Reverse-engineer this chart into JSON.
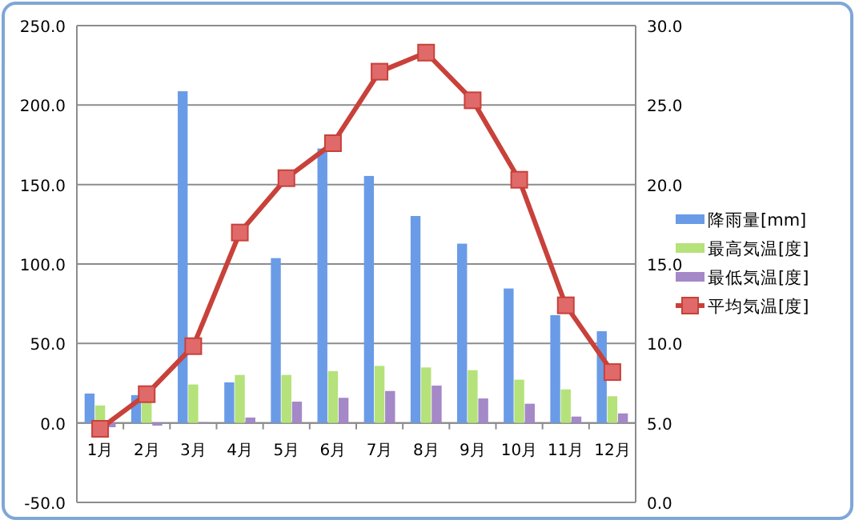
{
  "chart_data": {
    "type": "bar",
    "categories": [
      "1月",
      "2月",
      "3月",
      "4月",
      "5月",
      "6月",
      "7月",
      "8月",
      "9月",
      "10月",
      "11月",
      "12月"
    ],
    "series": [
      {
        "name": "降雨量[mm]",
        "color": "#6a9be6",
        "values": [
          18.5,
          17.5,
          208.7,
          25.5,
          103.7,
          172.7,
          155.4,
          130.2,
          112.8,
          84.6,
          67.8,
          57.7
        ]
      },
      {
        "name": "最高気温[度]",
        "color": "#b5e27a",
        "values": [
          11,
          14,
          24.2,
          30.2,
          30.2,
          32.6,
          35.9,
          34.9,
          33.2,
          27.2,
          21.1,
          16.8
        ]
      },
      {
        "name": "最低気温[度]",
        "color": "#a488c8",
        "values": [
          -2.7,
          -1.7,
          0.5,
          3.4,
          13.4,
          15.8,
          20.1,
          23.5,
          15.4,
          12.1,
          4,
          6
        ]
      },
      {
        "name": "平均気温[度]",
        "color": "#c8413a",
        "type": "line",
        "axis": "y2",
        "marker": "square",
        "values": [
          4.63,
          6.81,
          9.83,
          16.98,
          20.4,
          22.6,
          27.1,
          28.3,
          25.3,
          20.3,
          12.4,
          8.2
        ]
      }
    ],
    "ylim": [
      -50,
      250
    ],
    "yticks": [
      {
        "value": -50,
        "label": "-50.0"
      },
      {
        "value": 0,
        "label": "0.0"
      },
      {
        "value": 50,
        "label": "50.0"
      },
      {
        "value": 100,
        "label": "100.0"
      },
      {
        "value": 150,
        "label": "150.0"
      },
      {
        "value": 200,
        "label": "200.0"
      },
      {
        "value": 250,
        "label": "250.0"
      }
    ],
    "y2lim": [
      0,
      30
    ],
    "y2ticks": [
      {
        "value": 0,
        "label": "0.0"
      },
      {
        "value": 5,
        "label": "5.0"
      },
      {
        "value": 10,
        "label": "10.0"
      },
      {
        "value": 15,
        "label": "15.0"
      },
      {
        "value": 20,
        "label": "20.0"
      },
      {
        "value": 25,
        "label": "25.0"
      },
      {
        "value": 30,
        "label": "30.0"
      }
    ],
    "grid": "y",
    "legend": "right"
  }
}
